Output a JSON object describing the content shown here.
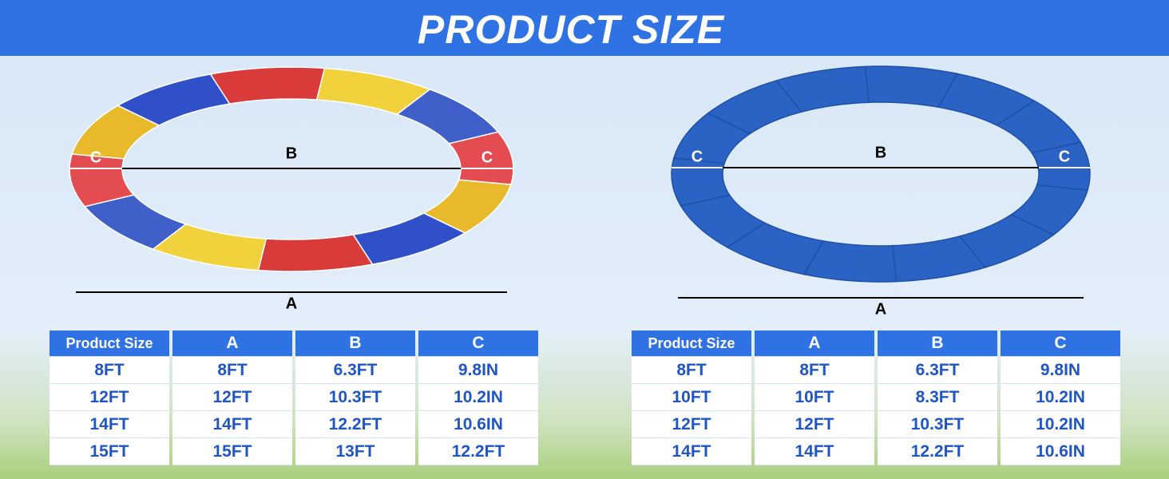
{
  "header": {
    "title": "PRODUCT SIZE"
  },
  "left": {
    "dimension_labels": [
      "C",
      "B",
      "C",
      "A"
    ],
    "table": {
      "header": [
        "Product Size",
        "A",
        "B",
        "C"
      ],
      "rows": [
        [
          "8FT",
          "8FT",
          "6.3FT",
          "9.8IN"
        ],
        [
          "12FT",
          "12FT",
          "10.3FT",
          "10.2IN"
        ],
        [
          "14FT",
          "14FT",
          "12.2FT",
          "10.6IN"
        ],
        [
          "15FT",
          "15FT",
          "13FT",
          "12.2FT"
        ]
      ]
    }
  },
  "right": {
    "dimension_labels": [
      "C",
      "B",
      "C",
      "A"
    ],
    "table": {
      "header": [
        "Product Size",
        "A",
        "B",
        "C"
      ],
      "rows": [
        [
          "8FT",
          "8FT",
          "6.3FT",
          "9.8IN"
        ],
        [
          "10FT",
          "10FT",
          "8.3FT",
          "10.2IN"
        ],
        [
          "12FT",
          "12FT",
          "10.3FT",
          "10.2IN"
        ],
        [
          "14FT",
          "14FT",
          "12.2FT",
          "10.6IN"
        ]
      ]
    }
  }
}
